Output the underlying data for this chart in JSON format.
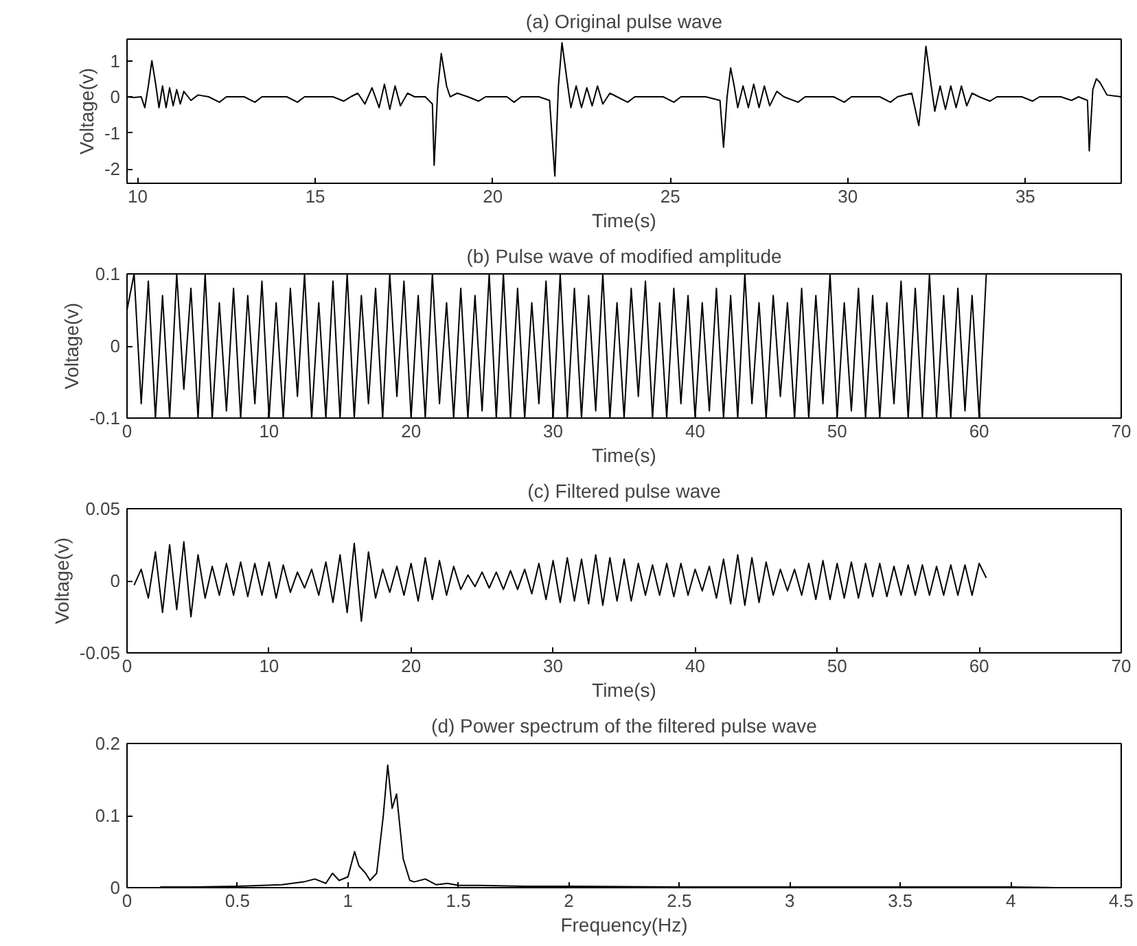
{
  "chart_data": [
    {
      "type": "line",
      "title": "(a) Original pulse wave",
      "xlabel": "Time(s)",
      "ylabel": "Voltage(v)",
      "xlim": [
        9.7,
        37.7
      ],
      "ylim": [
        -2.4,
        1.6
      ],
      "xticks": [
        10,
        15,
        20,
        25,
        30,
        35
      ],
      "yticks": [
        -2,
        -1,
        0,
        1
      ],
      "x": [
        9.7,
        9.9,
        10.1,
        10.2,
        10.3,
        10.4,
        10.5,
        10.6,
        10.7,
        10.8,
        10.9,
        11.0,
        11.1,
        11.2,
        11.3,
        11.5,
        11.7,
        12.0,
        12.3,
        12.5,
        13.0,
        13.3,
        13.5,
        14.2,
        14.5,
        14.7,
        15.5,
        15.8,
        16.0,
        16.2,
        16.4,
        16.6,
        16.8,
        16.95,
        17.1,
        17.25,
        17.4,
        17.6,
        17.8,
        18.1,
        18.3,
        18.35,
        18.45,
        18.55,
        18.7,
        18.8,
        19.0,
        19.3,
        19.6,
        19.8,
        20.4,
        20.6,
        20.8,
        21.3,
        21.6,
        21.75,
        21.85,
        21.95,
        22.1,
        22.2,
        22.35,
        22.5,
        22.65,
        22.8,
        22.95,
        23.1,
        23.3,
        23.5,
        23.8,
        24.0,
        24.8,
        25.1,
        25.3,
        26.0,
        26.4,
        26.5,
        26.6,
        26.7,
        26.8,
        26.9,
        27.05,
        27.2,
        27.35,
        27.5,
        27.65,
        27.8,
        28.0,
        28.2,
        28.6,
        28.8,
        29.6,
        29.9,
        30.1,
        30.9,
        31.2,
        31.4,
        31.8,
        32.0,
        32.1,
        32.2,
        32.35,
        32.45,
        32.6,
        32.75,
        32.9,
        33.05,
        33.2,
        33.35,
        33.5,
        33.7,
        34.0,
        34.2,
        34.9,
        35.2,
        35.4,
        36.0,
        36.3,
        36.5,
        36.75,
        36.8,
        36.9,
        37.0,
        37.1,
        37.3,
        37.7
      ],
      "series": [
        {
          "color": "#000000",
          "values": [
            0.0,
            -0.02,
            0.0,
            -0.3,
            0.3,
            1.0,
            0.4,
            -0.3,
            0.3,
            -0.3,
            0.25,
            -0.25,
            0.2,
            -0.2,
            0.15,
            -0.1,
            0.05,
            0.0,
            -0.15,
            0.0,
            0.0,
            -0.15,
            0.0,
            0.0,
            -0.15,
            0.0,
            0.0,
            -0.12,
            0.0,
            0.1,
            -0.2,
            0.25,
            -0.3,
            0.35,
            -0.35,
            0.3,
            -0.25,
            0.1,
            0.0,
            0.0,
            -0.2,
            -1.9,
            0.2,
            1.2,
            0.3,
            0.0,
            0.1,
            0.0,
            -0.12,
            0.0,
            0.0,
            -0.15,
            0.0,
            0.0,
            -0.1,
            -2.2,
            0.3,
            1.5,
            0.4,
            -0.3,
            0.3,
            -0.3,
            0.25,
            -0.25,
            0.3,
            -0.2,
            0.1,
            0.0,
            -0.15,
            0.0,
            0.0,
            -0.15,
            0.0,
            0.0,
            -0.1,
            -1.4,
            0.0,
            0.8,
            0.3,
            -0.3,
            0.3,
            -0.3,
            0.35,
            -0.3,
            0.3,
            -0.25,
            0.15,
            0.0,
            -0.15,
            0.0,
            0.0,
            -0.15,
            0.0,
            0.0,
            -0.15,
            0.0,
            0.1,
            -0.8,
            0.2,
            1.4,
            0.3,
            -0.4,
            0.3,
            -0.35,
            0.3,
            -0.3,
            0.3,
            -0.25,
            0.1,
            0.0,
            -0.12,
            0.0,
            0.0,
            -0.12,
            0.0,
            0.0,
            -0.1,
            0.0,
            -0.1,
            -1.5,
            0.2,
            0.5,
            0.4,
            0.05,
            0.0
          ]
        }
      ]
    },
    {
      "type": "line",
      "title": "(b) Pulse wave of modified amplitude",
      "xlabel": "Time(s)",
      "ylabel": "Voltage(v)",
      "xlim": [
        0,
        70
      ],
      "ylim": [
        -0.1,
        0.1
      ],
      "xticks": [
        0,
        10,
        20,
        30,
        40,
        50,
        60,
        70
      ],
      "yticks": [
        -0.1,
        0,
        0.1
      ],
      "x": [
        0,
        0.5,
        1,
        1.5,
        2,
        2.5,
        3,
        3.5,
        4,
        4.5,
        5,
        5.5,
        6,
        6.5,
        7,
        7.5,
        8,
        8.5,
        9,
        9.5,
        10,
        10.5,
        11,
        11.5,
        12,
        12.5,
        13,
        13.5,
        14,
        14.5,
        15,
        15.5,
        16,
        16.5,
        17,
        17.5,
        18,
        18.5,
        19,
        19.5,
        20,
        20.5,
        21,
        21.5,
        22,
        22.5,
        23,
        23.5,
        24,
        24.5,
        25,
        25.5,
        26,
        26.5,
        27,
        27.5,
        28,
        28.5,
        29,
        29.5,
        30,
        30.5,
        31,
        31.5,
        32,
        32.5,
        33,
        33.5,
        34,
        34.5,
        35,
        35.5,
        36,
        36.5,
        37,
        37.5,
        38,
        38.5,
        39,
        39.5,
        40,
        40.5,
        41,
        41.5,
        42,
        42.5,
        43,
        43.5,
        44,
        44.5,
        45,
        45.5,
        46,
        46.5,
        47,
        47.5,
        48,
        48.5,
        49,
        49.5,
        50,
        50.5,
        51,
        51.5,
        52,
        52.5,
        53,
        53.5,
        54,
        54.5,
        55,
        55.5,
        56,
        56.5,
        57,
        57.5,
        58,
        58.5,
        59,
        59.5,
        60,
        60.5
      ],
      "series": [
        {
          "color": "#000000",
          "values": [
            0.05,
            0.1,
            -0.08,
            0.09,
            -0.1,
            0.07,
            -0.1,
            0.1,
            -0.06,
            0.08,
            -0.1,
            0.1,
            -0.1,
            0.06,
            -0.09,
            0.08,
            -0.1,
            0.07,
            -0.08,
            0.09,
            -0.1,
            0.06,
            -0.1,
            0.08,
            -0.07,
            0.1,
            -0.1,
            0.06,
            -0.1,
            0.09,
            -0.1,
            0.1,
            -0.1,
            0.07,
            -0.08,
            0.08,
            -0.1,
            0.1,
            -0.07,
            0.09,
            -0.1,
            0.07,
            -0.1,
            0.1,
            -0.08,
            0.06,
            -0.1,
            0.08,
            -0.1,
            0.07,
            -0.09,
            0.1,
            -0.1,
            0.1,
            -0.1,
            0.08,
            -0.1,
            0.06,
            -0.08,
            0.09,
            -0.1,
            0.1,
            -0.1,
            0.08,
            -0.1,
            0.07,
            -0.09,
            0.1,
            -0.1,
            0.06,
            -0.1,
            0.08,
            -0.07,
            0.09,
            -0.1,
            0.06,
            -0.1,
            0.08,
            -0.08,
            0.07,
            -0.1,
            0.06,
            -0.09,
            0.08,
            -0.1,
            0.07,
            -0.1,
            0.1,
            -0.08,
            0.06,
            -0.1,
            0.07,
            -0.07,
            0.06,
            -0.1,
            0.08,
            -0.1,
            0.07,
            -0.08,
            0.1,
            -0.1,
            0.06,
            -0.09,
            0.08,
            -0.1,
            0.07,
            -0.1,
            0.06,
            -0.08,
            0.09,
            -0.1,
            0.08,
            -0.1,
            0.1,
            -0.1,
            0.07,
            -0.1,
            0.08,
            -0.09,
            0.07,
            -0.1,
            0.1
          ]
        }
      ]
    },
    {
      "type": "line",
      "title": "(c) Filtered pulse wave",
      "xlabel": "Time(s)",
      "ylabel": "Voltage(v)",
      "xlim": [
        0,
        70
      ],
      "ylim": [
        -0.05,
        0.05
      ],
      "xticks": [
        0,
        10,
        20,
        30,
        40,
        50,
        60,
        70
      ],
      "yticks": [
        -0.05,
        0,
        0.05
      ],
      "x": [
        0.5,
        1,
        1.5,
        2,
        2.5,
        3,
        3.5,
        4,
        4.5,
        5,
        5.5,
        6,
        6.5,
        7,
        7.5,
        8,
        8.5,
        9,
        9.5,
        10,
        10.5,
        11,
        11.5,
        12,
        12.5,
        13,
        13.5,
        14,
        14.5,
        15,
        15.5,
        16,
        16.5,
        17,
        17.5,
        18,
        18.5,
        19,
        19.5,
        20,
        20.5,
        21,
        21.5,
        22,
        22.5,
        23,
        23.5,
        24,
        24.5,
        25,
        25.5,
        26,
        26.5,
        27,
        27.5,
        28,
        28.5,
        29,
        29.5,
        30,
        30.5,
        31,
        31.5,
        32,
        32.5,
        33,
        33.5,
        34,
        34.5,
        35,
        35.5,
        36,
        36.5,
        37,
        37.5,
        38,
        38.5,
        39,
        39.5,
        40,
        40.5,
        41,
        41.5,
        42,
        42.5,
        43,
        43.5,
        44,
        44.5,
        45,
        45.5,
        46,
        46.5,
        47,
        47.5,
        48,
        48.5,
        49,
        49.5,
        50,
        50.5,
        51,
        51.5,
        52,
        52.5,
        53,
        53.5,
        54,
        54.5,
        55,
        55.5,
        56,
        56.5,
        57,
        57.5,
        58,
        58.5,
        59,
        59.5,
        60,
        60.5
      ],
      "series": [
        {
          "color": "#000000",
          "values": [
            -0.003,
            0.008,
            -0.012,
            0.02,
            -0.022,
            0.025,
            -0.02,
            0.027,
            -0.025,
            0.018,
            -0.012,
            0.01,
            -0.01,
            0.012,
            -0.01,
            0.013,
            -0.011,
            0.012,
            -0.01,
            0.013,
            -0.012,
            0.011,
            -0.008,
            0.006,
            -0.005,
            0.008,
            -0.01,
            0.013,
            -0.015,
            0.018,
            -0.022,
            0.026,
            -0.028,
            0.02,
            -0.012,
            0.008,
            -0.008,
            0.01,
            -0.01,
            0.012,
            -0.014,
            0.016,
            -0.013,
            0.014,
            -0.01,
            0.01,
            -0.006,
            0.004,
            -0.004,
            0.006,
            -0.005,
            0.006,
            -0.006,
            0.007,
            -0.006,
            0.008,
            -0.009,
            0.012,
            -0.013,
            0.014,
            -0.015,
            0.016,
            -0.014,
            0.015,
            -0.016,
            0.018,
            -0.017,
            0.016,
            -0.014,
            0.015,
            -0.014,
            0.012,
            -0.01,
            0.011,
            -0.01,
            0.012,
            -0.011,
            0.012,
            -0.01,
            0.008,
            -0.007,
            0.01,
            -0.012,
            0.015,
            -0.016,
            0.018,
            -0.017,
            0.016,
            -0.015,
            0.013,
            -0.01,
            0.008,
            -0.007,
            0.008,
            -0.01,
            0.012,
            -0.013,
            0.014,
            -0.013,
            0.012,
            -0.012,
            0.013,
            -0.012,
            0.012,
            -0.011,
            0.012,
            -0.011,
            0.01,
            -0.01,
            0.011,
            -0.01,
            0.011,
            -0.01,
            0.01,
            -0.01,
            0.011,
            -0.01,
            0.011,
            -0.01,
            0.012,
            0.002
          ]
        }
      ]
    },
    {
      "type": "line",
      "title": "(d) Power spectrum of the filtered pulse wave",
      "xlabel": "Frequency(Hz)",
      "xlim": [
        0,
        4.5
      ],
      "ylim": [
        0,
        0.2
      ],
      "xticks": [
        0,
        0.5,
        1,
        1.5,
        2,
        2.5,
        3,
        3.5,
        4,
        4.5
      ],
      "yticks": [
        0,
        0.1,
        0.2
      ],
      "x": [
        0.15,
        0.3,
        0.5,
        0.7,
        0.8,
        0.85,
        0.9,
        0.93,
        0.96,
        1.0,
        1.03,
        1.05,
        1.08,
        1.1,
        1.13,
        1.16,
        1.18,
        1.2,
        1.22,
        1.25,
        1.28,
        1.3,
        1.35,
        1.4,
        1.45,
        1.5,
        1.6,
        1.8,
        2.0,
        2.5,
        3.0,
        3.5,
        4.0,
        4.2
      ],
      "series": [
        {
          "color": "#000000",
          "values": [
            0.001,
            0.001,
            0.002,
            0.004,
            0.008,
            0.012,
            0.006,
            0.02,
            0.01,
            0.015,
            0.05,
            0.03,
            0.02,
            0.01,
            0.02,
            0.1,
            0.17,
            0.11,
            0.13,
            0.04,
            0.01,
            0.008,
            0.012,
            0.004,
            0.006,
            0.003,
            0.003,
            0.002,
            0.002,
            0.001,
            0.001,
            0.001,
            0.001,
            0.0
          ]
        }
      ]
    }
  ]
}
